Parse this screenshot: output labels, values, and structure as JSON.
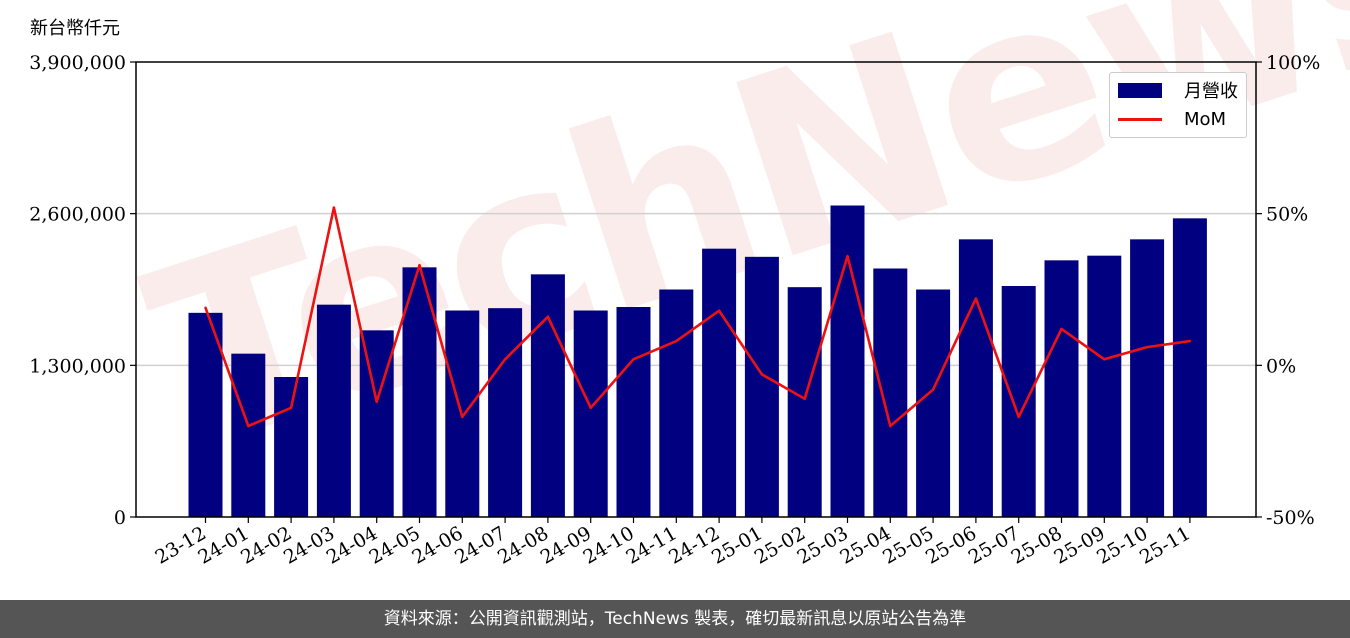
{
  "watermark": "TechNews",
  "footer": {
    "text": "資料來源：公開資訊觀測站，TechNews 製表，確切最新訊息以原站公告為準"
  },
  "colors": {
    "bar": "#000080",
    "line": "#ee1111",
    "grid": "#d0d0d0",
    "footer_bg": "#555555"
  },
  "chart_data": {
    "type": "bar",
    "ylabel": "新台幣仟元",
    "ylim": [
      0,
      3900000
    ],
    "y_ticks": [
      "0",
      "1,300,000",
      "2,600,000",
      "3,900,000"
    ],
    "y2lim": [
      -50,
      100
    ],
    "y2_ticks": [
      "-50%",
      "0%",
      "50%",
      "100%"
    ],
    "grid": "horizontal",
    "legend_position": "top-right",
    "categories": [
      "23-12",
      "24-01",
      "24-02",
      "24-03",
      "24-04",
      "24-05",
      "24-06",
      "24-07",
      "24-08",
      "24-09",
      "24-10",
      "24-11",
      "24-12",
      "25-01",
      "25-02",
      "25-03",
      "25-04",
      "25-05",
      "25-06",
      "25-07",
      "25-08",
      "25-09",
      "25-10",
      "25-11"
    ],
    "series": [
      {
        "name": "月營收",
        "type": "bar",
        "axis": "left",
        "values": [
          1750000,
          1400000,
          1200000,
          1820000,
          1600000,
          2140000,
          1770000,
          1790000,
          2080000,
          1770000,
          1800000,
          1950000,
          2300000,
          2230000,
          1970000,
          2670000,
          2130000,
          1950000,
          2380000,
          1980000,
          2200000,
          2240000,
          2380000,
          2560000
        ]
      },
      {
        "name": "MoM",
        "type": "line",
        "axis": "right",
        "values": [
          19,
          -20,
          -14,
          52,
          -12,
          33,
          -17,
          2,
          16,
          -14,
          2,
          8,
          18,
          -3,
          -11,
          36,
          -20,
          -8,
          22,
          -17,
          12,
          2,
          6,
          8
        ]
      }
    ]
  }
}
